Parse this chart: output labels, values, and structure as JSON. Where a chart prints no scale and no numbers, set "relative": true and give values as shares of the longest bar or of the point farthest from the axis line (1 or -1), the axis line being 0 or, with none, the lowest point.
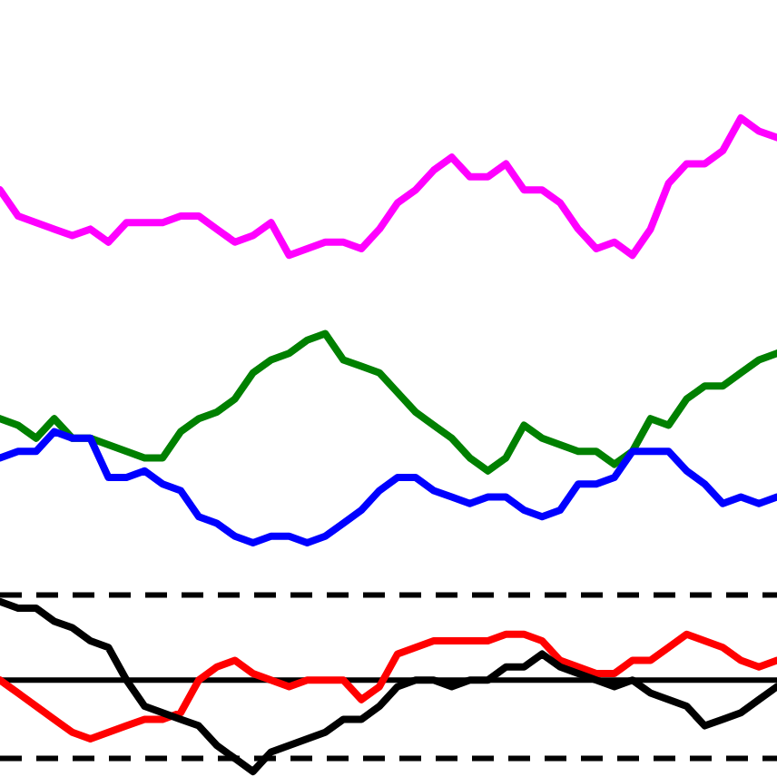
{
  "chart_data": {
    "type": "line",
    "relative": true,
    "categories": [
      null,
      null,
      null,
      null,
      null,
      null,
      null,
      null,
      null,
      null,
      null,
      null,
      null,
      null,
      null,
      null,
      null,
      null,
      null,
      null,
      null,
      null,
      null,
      null,
      null,
      null,
      null,
      null,
      null,
      null,
      null,
      null,
      null,
      null,
      null,
      null,
      null,
      null,
      null,
      null,
      null,
      null,
      null,
      null
    ],
    "series": [
      {
        "color": "#ff00ff",
        "values": [
          0.89,
          0.85,
          0.84,
          0.83,
          0.82,
          0.83,
          0.81,
          0.84,
          0.84,
          0.84,
          0.85,
          0.85,
          0.83,
          0.81,
          0.82,
          0.84,
          0.79,
          0.8,
          0.81,
          0.81,
          0.8,
          0.83,
          0.87,
          0.89,
          0.92,
          0.94,
          0.91,
          0.91,
          0.93,
          0.89,
          0.89,
          0.87,
          0.83,
          0.8,
          0.81,
          0.79,
          0.83,
          0.9,
          0.93,
          0.93,
          0.95,
          1.0,
          0.98,
          0.97
        ]
      },
      {
        "color": "#008000",
        "values": [
          0.54,
          0.53,
          0.51,
          0.54,
          0.51,
          0.51,
          0.5,
          0.49,
          0.48,
          0.48,
          0.52,
          0.54,
          0.55,
          0.57,
          0.61,
          0.63,
          0.64,
          0.66,
          0.67,
          0.63,
          0.62,
          0.61,
          0.58,
          0.55,
          0.53,
          0.51,
          0.48,
          0.46,
          0.48,
          0.53,
          0.51,
          0.5,
          0.49,
          0.49,
          0.47,
          0.49,
          0.54,
          0.53,
          0.57,
          0.59,
          0.59,
          0.61,
          0.63,
          0.64
        ]
      },
      {
        "color": "#0000ff",
        "values": [
          0.48,
          0.49,
          0.49,
          0.52,
          0.51,
          0.51,
          0.45,
          0.45,
          0.46,
          0.44,
          0.43,
          0.39,
          0.38,
          0.36,
          0.35,
          0.36,
          0.36,
          0.35,
          0.36,
          0.38,
          0.4,
          0.43,
          0.45,
          0.45,
          0.43,
          0.42,
          0.41,
          0.42,
          0.42,
          0.4,
          0.39,
          0.4,
          0.44,
          0.44,
          0.45,
          0.49,
          0.49,
          0.49,
          0.46,
          0.44,
          0.41,
          0.42,
          0.41,
          0.42
        ]
      },
      {
        "color": "#ff0000",
        "values": [
          0.14,
          0.12,
          0.1,
          0.08,
          0.06,
          0.05,
          0.06,
          0.07,
          0.08,
          0.08,
          0.09,
          0.14,
          0.16,
          0.17,
          0.15,
          0.14,
          0.13,
          0.14,
          0.14,
          0.14,
          0.11,
          0.13,
          0.18,
          0.19,
          0.2,
          0.2,
          0.2,
          0.2,
          0.21,
          0.21,
          0.2,
          0.17,
          0.16,
          0.15,
          0.15,
          0.17,
          0.17,
          0.19,
          0.21,
          0.2,
          0.19,
          0.17,
          0.16,
          0.17
        ]
      },
      {
        "color": "#000000",
        "values": [
          0.26,
          0.25,
          0.25,
          0.23,
          0.22,
          0.2,
          0.19,
          0.14,
          0.1,
          0.09,
          0.08,
          0.07,
          0.04,
          0.02,
          0.0,
          0.03,
          0.04,
          0.05,
          0.06,
          0.08,
          0.08,
          0.1,
          0.13,
          0.14,
          0.14,
          0.13,
          0.14,
          0.14,
          0.16,
          0.16,
          0.18,
          0.16,
          0.15,
          0.14,
          0.13,
          0.14,
          0.12,
          0.11,
          0.1,
          0.07,
          0.08,
          0.09,
          0.11,
          0.13
        ]
      }
    ],
    "ref_lines": [
      {
        "axis": "y",
        "value": 0.27,
        "color": "#000000",
        "line_style": "dashed"
      },
      {
        "axis": "y",
        "value": 0.14,
        "color": "#000000",
        "line_style": "solid"
      },
      {
        "axis": "y",
        "value": 0.02,
        "color": "#000000",
        "line_style": "dashed"
      }
    ]
  }
}
